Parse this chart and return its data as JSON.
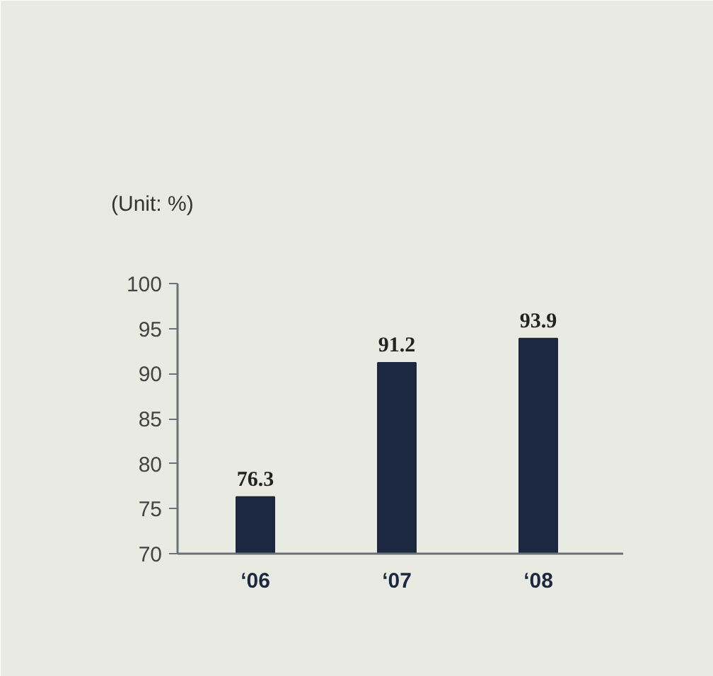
{
  "chart_data": {
    "type": "bar",
    "title": "(Unit: %)",
    "categories": [
      "‘06",
      "‘07",
      "‘08"
    ],
    "values": [
      76.3,
      91.2,
      93.9
    ],
    "color": "#1c2740",
    "ylim": [
      70,
      100
    ],
    "yticks": [
      70,
      75,
      80,
      85,
      90,
      95,
      100
    ],
    "data_labels": true,
    "grid": false
  }
}
